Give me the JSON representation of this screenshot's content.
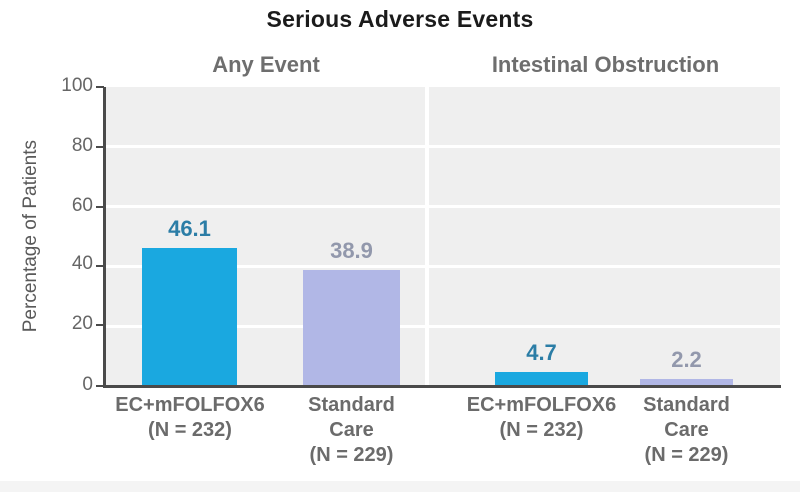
{
  "chart_data": {
    "type": "bar",
    "title": "Serious Adverse Events",
    "ylabel": "Percentage of Patients",
    "ylim": [
      0,
      100
    ],
    "yticks": [
      0,
      20,
      40,
      60,
      80,
      100
    ],
    "grid": "horizontal white gridlines on light gray panel background",
    "legend_position": "none",
    "panels": [
      {
        "subtitle": "Any Event",
        "bars": [
          {
            "label_lines": [
              "EC+mFOLFOX6"
            ],
            "n_label": "(N = 232)",
            "value": 46.1,
            "color": "#1aa8e0",
            "value_color": "#2b7da6"
          },
          {
            "label_lines": [
              "Standard",
              "Care"
            ],
            "n_label": "(N = 229)",
            "value": 38.9,
            "color": "#b1b7e6",
            "value_color": "#9298ac"
          }
        ]
      },
      {
        "subtitle": "Intestinal Obstruction",
        "bars": [
          {
            "label_lines": [
              "EC+mFOLFOX6"
            ],
            "n_label": "(N = 232)",
            "value": 4.7,
            "color": "#1aa8e0",
            "value_color": "#2b7da6"
          },
          {
            "label_lines": [
              "Standard",
              "Care"
            ],
            "n_label": "(N = 229)",
            "value": 2.2,
            "color": "#b1b7e6",
            "value_color": "#9298ac"
          }
        ]
      }
    ]
  },
  "palette": {
    "bar_primary": "#1aa8e0",
    "bar_secondary": "#b1b7e6",
    "value_label_primary": "#2b7da6",
    "value_label_secondary": "#9298ac",
    "plot_background": "#efefef",
    "gridline": "#ffffff",
    "axis": "#4a4a4a",
    "title_text": "#1b1b1b",
    "subtitle_text": "#6e6e6e",
    "category_text": "#6b6b6b",
    "tick_text": "#666666"
  }
}
